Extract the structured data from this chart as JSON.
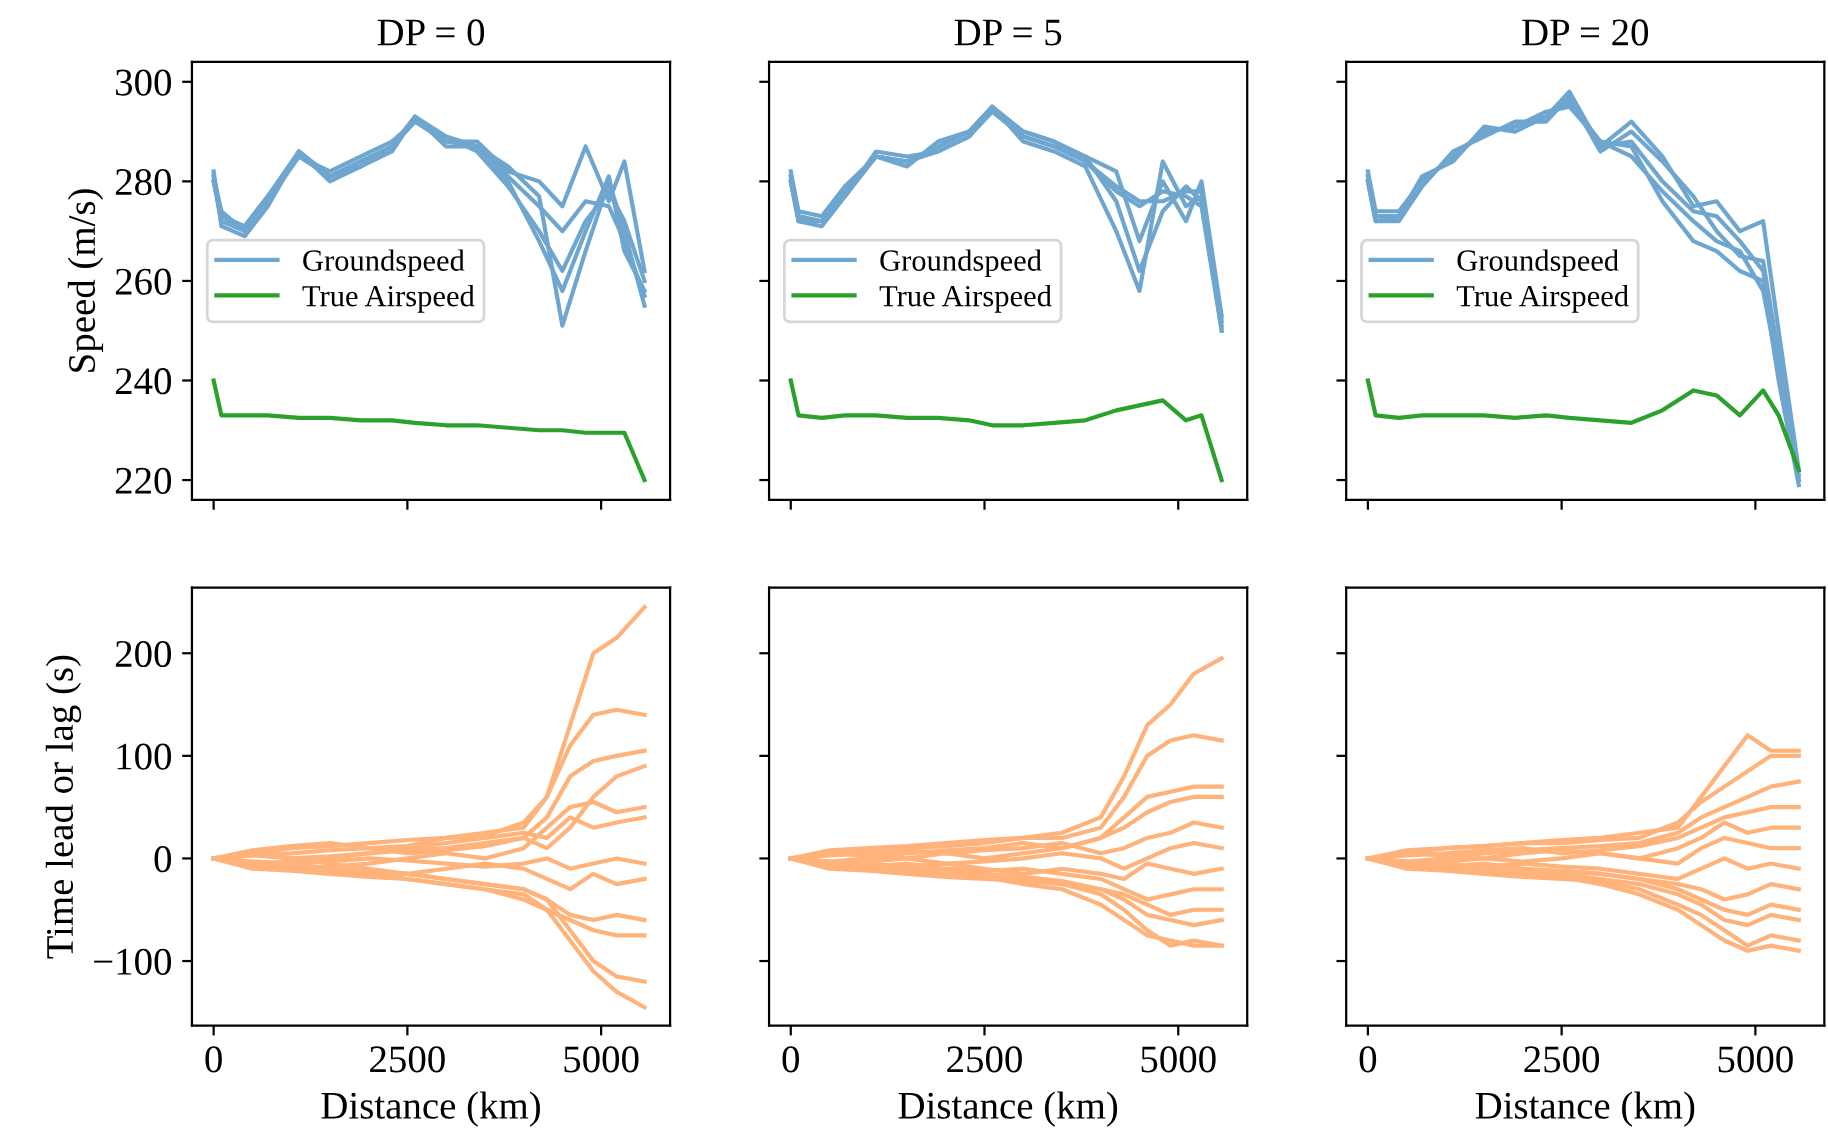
{
  "chart_data": [
    {
      "type": "line",
      "title": "DP = 0",
      "ylabel": "Speed (m/s)",
      "legend": "left",
      "tick_labels": "y",
      "xlim": [
        -280,
        5890
      ],
      "xticks": [
        0,
        2500,
        5000
      ],
      "ylim": [
        216,
        304
      ],
      "yticks": [
        220,
        240,
        260,
        280,
        300
      ],
      "x": [
        0,
        100,
        400,
        700,
        1100,
        1500,
        1900,
        2300,
        2600,
        3000,
        3400,
        3800,
        4200,
        4500,
        4800,
        5100,
        5300,
        5560
      ],
      "series": [
        {
          "name": "Groundspeed",
          "color": "#6fa6cf",
          "values": [
            281,
            272,
            270,
            276,
            286,
            281,
            284,
            287,
            293,
            288,
            287,
            281,
            275,
            270,
            276,
            275,
            268,
            257
          ]
        },
        {
          "color": "#6fa6cf",
          "values": [
            280,
            273,
            271,
            277,
            285,
            282,
            285,
            288,
            292,
            289,
            286,
            279,
            270,
            262,
            272,
            278,
            272,
            260
          ]
        },
        {
          "color": "#6fa6cf",
          "values": [
            282,
            271,
            269,
            275,
            286,
            280,
            283,
            286,
            293,
            287,
            287,
            283,
            277,
            251,
            266,
            280,
            270,
            255
          ]
        },
        {
          "color": "#6fa6cf",
          "values": [
            281,
            274,
            270,
            276,
            285,
            281,
            284,
            287,
            292,
            288,
            288,
            282,
            280,
            275,
            287,
            276,
            284,
            262
          ]
        },
        {
          "color": "#6fa6cf",
          "values": [
            280,
            272,
            271,
            277,
            286,
            281,
            283,
            287,
            293,
            289,
            287,
            280,
            268,
            258,
            270,
            281,
            266,
            258
          ]
        },
        {
          "name": "True Airspeed",
          "color": "#2ca02c",
          "values": [
            240,
            233,
            233,
            233,
            232.5,
            232.5,
            232,
            232,
            231.5,
            231,
            231,
            230.5,
            230,
            230,
            229.5,
            229.5,
            229.5,
            220
          ]
        }
      ]
    },
    {
      "type": "line",
      "title": "DP = 5",
      "legend": "left",
      "tick_labels": false,
      "xlim": [
        -280,
        5890
      ],
      "xticks": [
        0,
        2500,
        5000
      ],
      "ylim": [
        216,
        304
      ],
      "yticks": [
        220,
        240,
        260,
        280,
        300
      ],
      "x": [
        0,
        100,
        400,
        700,
        1100,
        1500,
        1900,
        2300,
        2600,
        3000,
        3400,
        3800,
        4200,
        4500,
        4800,
        5100,
        5300,
        5560
      ],
      "series": [
        {
          "name": "Groundspeed",
          "color": "#6fa6cf",
          "values": [
            281,
            273,
            272,
            278,
            285,
            284,
            287,
            290,
            295,
            289,
            287,
            284,
            278,
            275,
            278,
            277,
            275,
            250
          ]
        },
        {
          "color": "#6fa6cf",
          "values": [
            280,
            272,
            271,
            277,
            286,
            285,
            286,
            289,
            294,
            290,
            288,
            285,
            276,
            262,
            274,
            279,
            276,
            252
          ]
        },
        {
          "color": "#6fa6cf",
          "values": [
            282,
            274,
            273,
            279,
            285,
            284,
            287,
            290,
            295,
            288,
            286,
            283,
            270,
            258,
            284,
            275,
            277,
            251
          ]
        },
        {
          "color": "#6fa6cf",
          "values": [
            281,
            273,
            272,
            278,
            285,
            283,
            288,
            290,
            294,
            289,
            287,
            285,
            282,
            268,
            280,
            272,
            280,
            253
          ]
        },
        {
          "color": "#6fa6cf",
          "values": [
            280,
            272,
            272,
            277,
            285,
            284,
            286,
            289,
            295,
            290,
            288,
            284,
            279,
            276,
            276,
            278,
            278,
            250
          ]
        },
        {
          "name": "True Airspeed",
          "color": "#2ca02c",
          "values": [
            240,
            233,
            232.5,
            233,
            233,
            232.5,
            232.5,
            232,
            231,
            231,
            231.5,
            232,
            234,
            235,
            236,
            232,
            233,
            220
          ]
        }
      ]
    },
    {
      "type": "line",
      "title": "DP = 20",
      "legend": "left",
      "tick_labels": false,
      "xlim": [
        -280,
        5890
      ],
      "xticks": [
        0,
        2500,
        5000
      ],
      "ylim": [
        216,
        304
      ],
      "yticks": [
        220,
        240,
        260,
        280,
        300
      ],
      "x": [
        0,
        100,
        400,
        700,
        1100,
        1500,
        1900,
        2300,
        2600,
        3000,
        3400,
        3800,
        4200,
        4500,
        4800,
        5100,
        5300,
        5560
      ],
      "series": [
        {
          "name": "Groundspeed",
          "color": "#6fa6cf",
          "values": [
            281,
            273,
            273,
            280,
            285,
            290,
            291,
            293,
            296,
            287,
            288,
            280,
            274,
            273,
            268,
            262,
            243,
            220
          ]
        },
        {
          "color": "#6fa6cf",
          "values": [
            280,
            272,
            272,
            279,
            286,
            289,
            292,
            292,
            297,
            286,
            290,
            284,
            277,
            270,
            265,
            264,
            245,
            221
          ]
        },
        {
          "color": "#6fa6cf",
          "values": [
            282,
            274,
            274,
            280,
            285,
            290,
            291,
            294,
            295,
            288,
            287,
            276,
            268,
            266,
            262,
            260,
            240,
            219
          ]
        },
        {
          "color": "#6fa6cf",
          "values": [
            281,
            273,
            273,
            281,
            284,
            291,
            290,
            293,
            298,
            287,
            292,
            285,
            275,
            276,
            270,
            272,
            250,
            222
          ]
        },
        {
          "color": "#6fa6cf",
          "values": [
            280,
            272,
            273,
            280,
            285,
            290,
            291,
            293,
            296,
            288,
            285,
            278,
            272,
            268,
            266,
            258,
            242,
            220
          ]
        },
        {
          "name": "True Airspeed",
          "color": "#2ca02c",
          "values": [
            240,
            233,
            232.5,
            233,
            233,
            233,
            232.5,
            233,
            232.5,
            232,
            231.5,
            234,
            238,
            237,
            233,
            238,
            233,
            222
          ]
        }
      ]
    },
    {
      "type": "line",
      "xlabel": "Distance (km)",
      "ylabel": "Time lead or lag (s)",
      "xlim": [
        -280,
        5890
      ],
      "xticks": [
        0,
        2500,
        5000
      ],
      "ylim": [
        -163,
        264
      ],
      "yticks": [
        {
          "value": -100,
          "label": "−100"
        },
        0,
        100,
        200
      ],
      "x": [
        0,
        500,
        1000,
        1500,
        2000,
        2500,
        3000,
        3500,
        4000,
        4300,
        4600,
        4900,
        5200,
        5560
      ],
      "series": [
        {
          "color": "#ffb27a",
          "values": [
            0,
            5,
            10,
            12,
            15,
            18,
            20,
            25,
            30,
            60,
            130,
            200,
            215,
            245
          ]
        },
        {
          "color": "#ffb27a",
          "values": [
            0,
            8,
            12,
            15,
            10,
            12,
            20,
            22,
            35,
            60,
            110,
            140,
            145,
            140
          ]
        },
        {
          "color": "#ffb27a",
          "values": [
            0,
            -5,
            -3,
            0,
            5,
            8,
            10,
            15,
            20,
            40,
            80,
            95,
            100,
            105
          ]
        },
        {
          "color": "#ffb27a",
          "values": [
            0,
            3,
            5,
            8,
            10,
            5,
            8,
            12,
            20,
            10,
            30,
            60,
            80,
            90
          ]
        },
        {
          "color": "#ffb27a",
          "values": [
            0,
            -8,
            -10,
            -8,
            -5,
            0,
            5,
            0,
            10,
            30,
            50,
            55,
            45,
            50
          ]
        },
        {
          "color": "#ffb27a",
          "values": [
            0,
            5,
            0,
            2,
            5,
            10,
            15,
            20,
            25,
            20,
            40,
            30,
            35,
            40
          ]
        },
        {
          "color": "#ffb27a",
          "values": [
            0,
            -3,
            -5,
            -3,
            0,
            -2,
            -5,
            -8,
            -5,
            0,
            -10,
            -5,
            0,
            -5
          ]
        },
        {
          "color": "#ffb27a",
          "values": [
            0,
            -5,
            -8,
            -10,
            -12,
            -15,
            -10,
            -5,
            -10,
            -20,
            -30,
            -15,
            -25,
            -20
          ]
        },
        {
          "color": "#ffb27a",
          "values": [
            0,
            3,
            0,
            -5,
            -10,
            -15,
            -20,
            -25,
            -30,
            -40,
            -55,
            -60,
            -55,
            -60
          ]
        },
        {
          "color": "#ffb27a",
          "values": [
            0,
            -10,
            -12,
            -15,
            -18,
            -20,
            -25,
            -30,
            -40,
            -50,
            -60,
            -70,
            -75,
            -75
          ]
        },
        {
          "color": "#ffb27a",
          "values": [
            0,
            -5,
            -8,
            -12,
            -15,
            -15,
            -20,
            -25,
            -30,
            -40,
            -70,
            -100,
            -115,
            -120
          ]
        },
        {
          "color": "#ffb27a",
          "values": [
            0,
            -8,
            -5,
            -10,
            -15,
            -20,
            -25,
            -30,
            -35,
            -50,
            -80,
            -110,
            -130,
            -145
          ]
        }
      ]
    },
    {
      "type": "line",
      "xlabel": "Distance (km)",
      "tick_labels": "x",
      "xlim": [
        -280,
        5890
      ],
      "xticks": [
        0,
        2500,
        5000
      ],
      "ylim": [
        -163,
        264
      ],
      "yticks": [
        -100,
        0,
        100,
        200
      ],
      "x": [
        0,
        500,
        1000,
        1500,
        2000,
        2500,
        3000,
        3500,
        4000,
        4300,
        4600,
        4900,
        5200,
        5560
      ],
      "series": [
        {
          "color": "#ffb27a",
          "values": [
            0,
            5,
            8,
            10,
            12,
            15,
            20,
            25,
            40,
            80,
            130,
            150,
            180,
            195
          ]
        },
        {
          "color": "#ffb27a",
          "values": [
            0,
            8,
            10,
            12,
            15,
            18,
            20,
            20,
            30,
            60,
            100,
            115,
            120,
            115
          ]
        },
        {
          "color": "#ffb27a",
          "values": [
            0,
            -3,
            0,
            5,
            8,
            10,
            15,
            10,
            20,
            40,
            60,
            65,
            70,
            70
          ]
        },
        {
          "color": "#ffb27a",
          "values": [
            0,
            3,
            5,
            8,
            5,
            0,
            5,
            10,
            20,
            30,
            45,
            55,
            60,
            60
          ]
        },
        {
          "color": "#ffb27a",
          "values": [
            0,
            -5,
            -3,
            0,
            5,
            8,
            10,
            15,
            5,
            10,
            20,
            25,
            35,
            30
          ]
        },
        {
          "color": "#ffb27a",
          "values": [
            0,
            5,
            3,
            0,
            -5,
            -3,
            0,
            5,
            0,
            -10,
            0,
            10,
            15,
            10
          ]
        },
        {
          "color": "#ffb27a",
          "values": [
            0,
            -3,
            -5,
            -8,
            -5,
            -10,
            -15,
            -10,
            -15,
            -20,
            -5,
            -10,
            -15,
            -10
          ]
        },
        {
          "color": "#ffb27a",
          "values": [
            0,
            -5,
            -8,
            -5,
            -10,
            -12,
            -10,
            -15,
            -20,
            -30,
            -40,
            -35,
            -30,
            -30
          ]
        },
        {
          "color": "#ffb27a",
          "values": [
            0,
            -8,
            -10,
            -12,
            -15,
            -15,
            -20,
            -25,
            -30,
            -35,
            -45,
            -55,
            -50,
            -50
          ]
        },
        {
          "color": "#ffb27a",
          "values": [
            0,
            -5,
            -8,
            -10,
            -12,
            -15,
            -18,
            -22,
            -30,
            -40,
            -55,
            -60,
            -65,
            -60
          ]
        },
        {
          "color": "#ffb27a",
          "values": [
            0,
            -10,
            -12,
            -15,
            -18,
            -20,
            -22,
            -25,
            -35,
            -50,
            -70,
            -85,
            -80,
            -85
          ]
        },
        {
          "color": "#ffb27a",
          "values": [
            0,
            -6,
            -10,
            -12,
            -15,
            -18,
            -25,
            -30,
            -45,
            -60,
            -75,
            -80,
            -85,
            -85
          ]
        }
      ]
    },
    {
      "type": "line",
      "xlabel": "Distance (km)",
      "tick_labels": "x",
      "xlim": [
        -280,
        5890
      ],
      "xticks": [
        0,
        2500,
        5000
      ],
      "ylim": [
        -163,
        264
      ],
      "yticks": [
        -100,
        0,
        100,
        200
      ],
      "x": [
        0,
        500,
        1000,
        1500,
        2000,
        2500,
        3000,
        3500,
        4000,
        4300,
        4600,
        4900,
        5200,
        5560
      ],
      "series": [
        {
          "color": "#ffb27a",
          "values": [
            0,
            5,
            10,
            12,
            15,
            18,
            20,
            25,
            30,
            60,
            90,
            120,
            105,
            105
          ]
        },
        {
          "color": "#ffb27a",
          "values": [
            0,
            8,
            10,
            12,
            15,
            15,
            18,
            20,
            35,
            55,
            70,
            85,
            100,
            100
          ]
        },
        {
          "color": "#ffb27a",
          "values": [
            0,
            -3,
            0,
            5,
            8,
            10,
            12,
            15,
            25,
            40,
            50,
            60,
            70,
            75
          ]
        },
        {
          "color": "#ffb27a",
          "values": [
            0,
            3,
            5,
            8,
            10,
            5,
            8,
            12,
            20,
            30,
            40,
            45,
            50,
            50
          ]
        },
        {
          "color": "#ffb27a",
          "values": [
            0,
            -5,
            -3,
            0,
            5,
            8,
            5,
            0,
            10,
            20,
            35,
            25,
            30,
            30
          ]
        },
        {
          "color": "#ffb27a",
          "values": [
            0,
            5,
            3,
            0,
            -3,
            0,
            5,
            0,
            -5,
            10,
            20,
            15,
            10,
            10
          ]
        },
        {
          "color": "#ffb27a",
          "values": [
            0,
            -3,
            -5,
            -8,
            -5,
            -8,
            -10,
            -15,
            -20,
            -10,
            0,
            -10,
            -5,
            -10
          ]
        },
        {
          "color": "#ffb27a",
          "values": [
            0,
            -5,
            -8,
            -5,
            -10,
            -12,
            -15,
            -20,
            -25,
            -30,
            -40,
            -35,
            -25,
            -30
          ]
        },
        {
          "color": "#ffb27a",
          "values": [
            0,
            -8,
            -10,
            -12,
            -15,
            -12,
            -15,
            -20,
            -30,
            -40,
            -50,
            -55,
            -45,
            -50
          ]
        },
        {
          "color": "#ffb27a",
          "values": [
            0,
            -5,
            -8,
            -10,
            -12,
            -15,
            -20,
            -25,
            -35,
            -45,
            -60,
            -65,
            -55,
            -60
          ]
        },
        {
          "color": "#ffb27a",
          "values": [
            0,
            -10,
            -12,
            -15,
            -18,
            -20,
            -22,
            -30,
            -45,
            -55,
            -70,
            -85,
            -75,
            -80
          ]
        },
        {
          "color": "#ffb27a",
          "values": [
            0,
            -6,
            -10,
            -12,
            -15,
            -18,
            -25,
            -35,
            -50,
            -65,
            -80,
            -90,
            -85,
            -90
          ]
        }
      ]
    }
  ]
}
